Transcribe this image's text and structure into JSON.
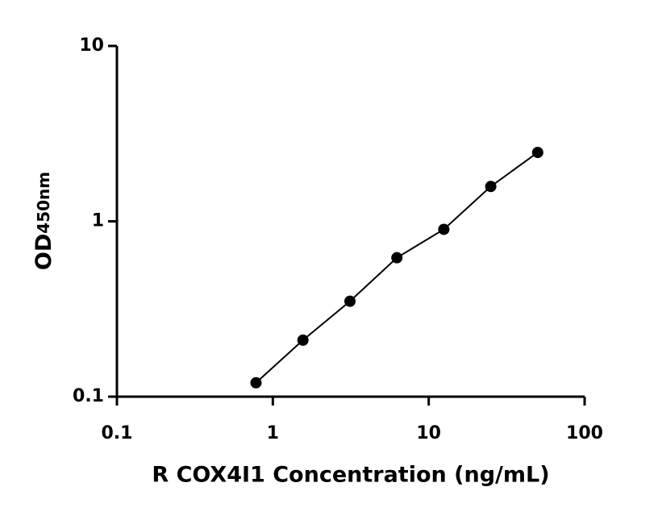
{
  "chart_data": {
    "type": "scatter",
    "x_label": "R COX4I1 Concentration (ng/mL)",
    "y_label": "OD",
    "y_label_sub": "450nm",
    "x": [
      0.78,
      1.56,
      3.125,
      6.25,
      12.5,
      25,
      50
    ],
    "values": [
      0.12,
      0.21,
      0.35,
      0.62,
      0.9,
      1.58,
      2.47
    ],
    "color": "#000000",
    "fit_line": true,
    "xscale": "log",
    "yscale": "log",
    "xlim": [
      0.1,
      100
    ],
    "xticks": [
      0.1,
      1,
      10,
      100
    ],
    "ylim": [
      0.1,
      10
    ],
    "yticks": [
      0.1,
      1,
      10
    ]
  }
}
